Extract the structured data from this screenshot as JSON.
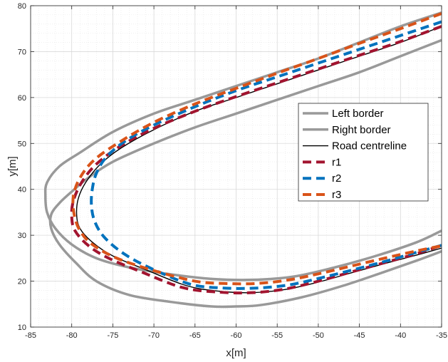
{
  "chart_data": {
    "type": "line",
    "xlabel": "x[m]",
    "ylabel": "y[m]",
    "xlim": [
      -85,
      -35
    ],
    "ylim": [
      10,
      80
    ],
    "xticks": [
      -85,
      -80,
      -75,
      -70,
      -65,
      -60,
      -55,
      -50,
      -45,
      -40,
      -35
    ],
    "yticks": [
      10,
      20,
      30,
      40,
      50,
      60,
      70,
      80
    ],
    "grid": "major and minor",
    "legend_position": "center-right",
    "series": [
      {
        "name": "Left border",
        "color": "#999999",
        "style": "solid",
        "x": [
          -35,
          -40,
          -45,
          -50,
          -55,
          -60,
          -65,
          -70,
          -75,
          -78,
          -80,
          -81.5,
          -82.5,
          -82.5,
          -81.5,
          -79.5,
          -77,
          -73,
          -68,
          -63,
          -60,
          -57,
          -52,
          -47,
          -42,
          -38,
          -35
        ],
        "y": [
          72.5,
          69,
          65.5,
          62.5,
          59.5,
          56.5,
          53.5,
          50,
          46,
          42.5,
          39.5,
          37,
          34.5,
          31.5,
          28,
          24,
          20,
          17,
          15.5,
          14.5,
          14.5,
          14.8,
          16.5,
          19,
          22,
          24.5,
          26.5
        ]
      },
      {
        "name": "Right border",
        "color": "#999999",
        "style": "solid",
        "x": [
          -35,
          -40,
          -45,
          -50,
          -55,
          -60,
          -65,
          -70,
          -75,
          -79,
          -81.5,
          -83,
          -83.2,
          -83,
          -82,
          -80,
          -77,
          -73,
          -68,
          -63,
          -58,
          -53,
          -48,
          -43,
          -38,
          -35
        ],
        "y": [
          78.5,
          75.5,
          72,
          68.5,
          65.5,
          62.5,
          59.5,
          56.5,
          52.5,
          48,
          45,
          41.5,
          38.5,
          35,
          31.5,
          28,
          25,
          23,
          21.5,
          20.5,
          20.3,
          21,
          23,
          25.5,
          28.5,
          31
        ]
      },
      {
        "name": "Road centreline",
        "color": "#000000",
        "style": "solid",
        "x": [
          -35,
          -40,
          -45,
          -50,
          -55,
          -60,
          -65,
          -70,
          -74,
          -76.5,
          -78.3,
          -79.2,
          -79.4,
          -79,
          -77.5,
          -75,
          -71,
          -66,
          -62,
          -58,
          -54,
          -50,
          -46,
          -42,
          -38,
          -35
        ],
        "y": [
          75.5,
          72,
          69,
          66,
          63,
          60,
          57,
          53,
          49,
          45.5,
          41.5,
          38,
          34.5,
          31.5,
          28.5,
          25.5,
          22.5,
          19,
          17.8,
          17.5,
          18.2,
          19.8,
          21.8,
          23.8,
          25.7,
          27.2
        ]
      },
      {
        "name": "r1",
        "color": "#a2142f",
        "style": "dashed",
        "x": [
          -35,
          -40,
          -45,
          -50,
          -55,
          -60,
          -65,
          -70,
          -74,
          -77,
          -78.8,
          -79.8,
          -80,
          -79.6,
          -78,
          -75.5,
          -71.5,
          -66.5,
          -62,
          -58,
          -54,
          -50,
          -46,
          -42,
          -38,
          -35
        ],
        "y": [
          75.5,
          72.2,
          69.2,
          66.2,
          63.2,
          60.2,
          57,
          53.3,
          49.5,
          45.5,
          41.5,
          37.5,
          34,
          31,
          27.8,
          25,
          22,
          18.6,
          17.6,
          17.5,
          18.3,
          20,
          22,
          24,
          26,
          27.8
        ]
      },
      {
        "name": "r2",
        "color": "#0072bd",
        "style": "dashed",
        "x": [
          -35,
          -40,
          -45,
          -50,
          -55,
          -60,
          -65,
          -70,
          -73.5,
          -75.8,
          -77,
          -77.5,
          -77.6,
          -77.2,
          -76,
          -73.5,
          -70,
          -65.5,
          -61.5,
          -57.5,
          -53.5,
          -49.5,
          -45.5,
          -41.5,
          -38,
          -35
        ],
        "y": [
          76.5,
          73.5,
          70.5,
          67.5,
          64.5,
          61.5,
          58,
          54,
          50.5,
          47,
          43.5,
          40,
          36.5,
          33,
          29.5,
          25.8,
          22.5,
          19.3,
          18.5,
          18.5,
          19.2,
          20.8,
          22.6,
          24.5,
          26.3,
          27.8
        ]
      },
      {
        "name": "r3",
        "color": "#d95319",
        "style": "dashed",
        "x": [
          -35,
          -40,
          -45,
          -50,
          -55,
          -60,
          -65,
          -70,
          -74,
          -77.2,
          -79,
          -79.8,
          -79.7,
          -79,
          -77.5,
          -74.5,
          -70,
          -65,
          -61.5,
          -57.5,
          -53.5,
          -49.5,
          -45.5,
          -41.5,
          -38,
          -35
        ],
        "y": [
          78.3,
          75,
          71.8,
          68.5,
          65.3,
          62,
          58.6,
          54.6,
          50.5,
          46.5,
          42.5,
          38.5,
          34.5,
          31,
          28,
          25,
          22.3,
          20,
          19.5,
          19.5,
          20.3,
          21.8,
          23.5,
          25.2,
          26.6,
          27.7
        ]
      }
    ]
  }
}
